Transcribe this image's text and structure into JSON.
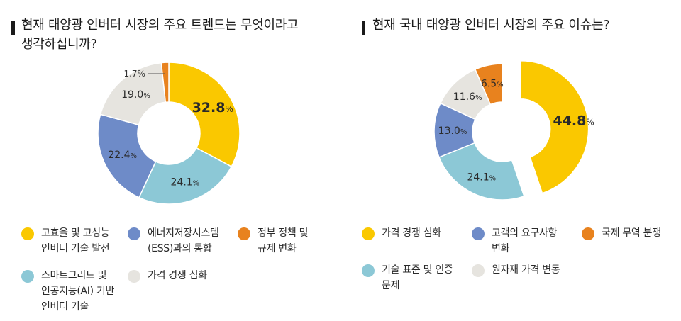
{
  "chart_data": [
    {
      "type": "pie",
      "title": "현재 태양광 인버터 시장의 주요 트렌드는 무엇이라고\n생각하십니까?",
      "slices": [
        {
          "label": "고효율 및 고성능\n인버터 기술 발전",
          "value": 32.8,
          "value_text": "32.8",
          "color": "#FAC800",
          "explode": false,
          "emphasis": true
        },
        {
          "label": "스마트그리드 및\n인공지능(AI) 기반\n인버터 기술",
          "value": 24.1,
          "value_text": "24.1",
          "color": "#8CC8D6",
          "explode": false,
          "emphasis": false
        },
        {
          "label": "에너지저장시스템\n(ESS)과의 통합",
          "value": 22.4,
          "value_text": "22.4",
          "color": "#6E8BC8",
          "explode": false,
          "emphasis": false
        },
        {
          "label": "가격 경쟁 심화",
          "value": 19.0,
          "value_text": "19.0",
          "color": "#E6E4DF",
          "explode": false,
          "emphasis": false
        },
        {
          "label": "정부 정책 및\n규제 변화",
          "value": 1.7,
          "value_text": "1.7",
          "color": "#E8821E",
          "explode": false,
          "emphasis": false,
          "callout": true
        }
      ],
      "unit": "%",
      "legend_order": [
        0,
        2,
        4,
        1,
        3
      ]
    },
    {
      "type": "pie",
      "title": "현재 국내 태양광 인버터 시장의 주요 이슈는?",
      "slices": [
        {
          "label": "가격 경쟁 심화",
          "value": 44.8,
          "value_text": "44.8",
          "color": "#FAC800",
          "explode": true,
          "emphasis": true
        },
        {
          "label": "기술 표준 및 인증\n문제",
          "value": 24.1,
          "value_text": "24.1",
          "color": "#8CC8D6",
          "explode": false,
          "emphasis": false
        },
        {
          "label": "고객의 요구사항\n변화",
          "value": 13.0,
          "value_text": "13.0",
          "color": "#6E8BC8",
          "explode": false,
          "emphasis": false
        },
        {
          "label": "원자재 가격 변동",
          "value": 11.6,
          "value_text": "11.6",
          "color": "#E6E4DF",
          "explode": false,
          "emphasis": false
        },
        {
          "label": "국제 무역 분쟁",
          "value": 6.5,
          "value_text": "6.5",
          "color": "#E8821E",
          "explode": false,
          "emphasis": false
        }
      ],
      "unit": "%",
      "legend_order": [
        0,
        2,
        4,
        1,
        3
      ]
    }
  ]
}
